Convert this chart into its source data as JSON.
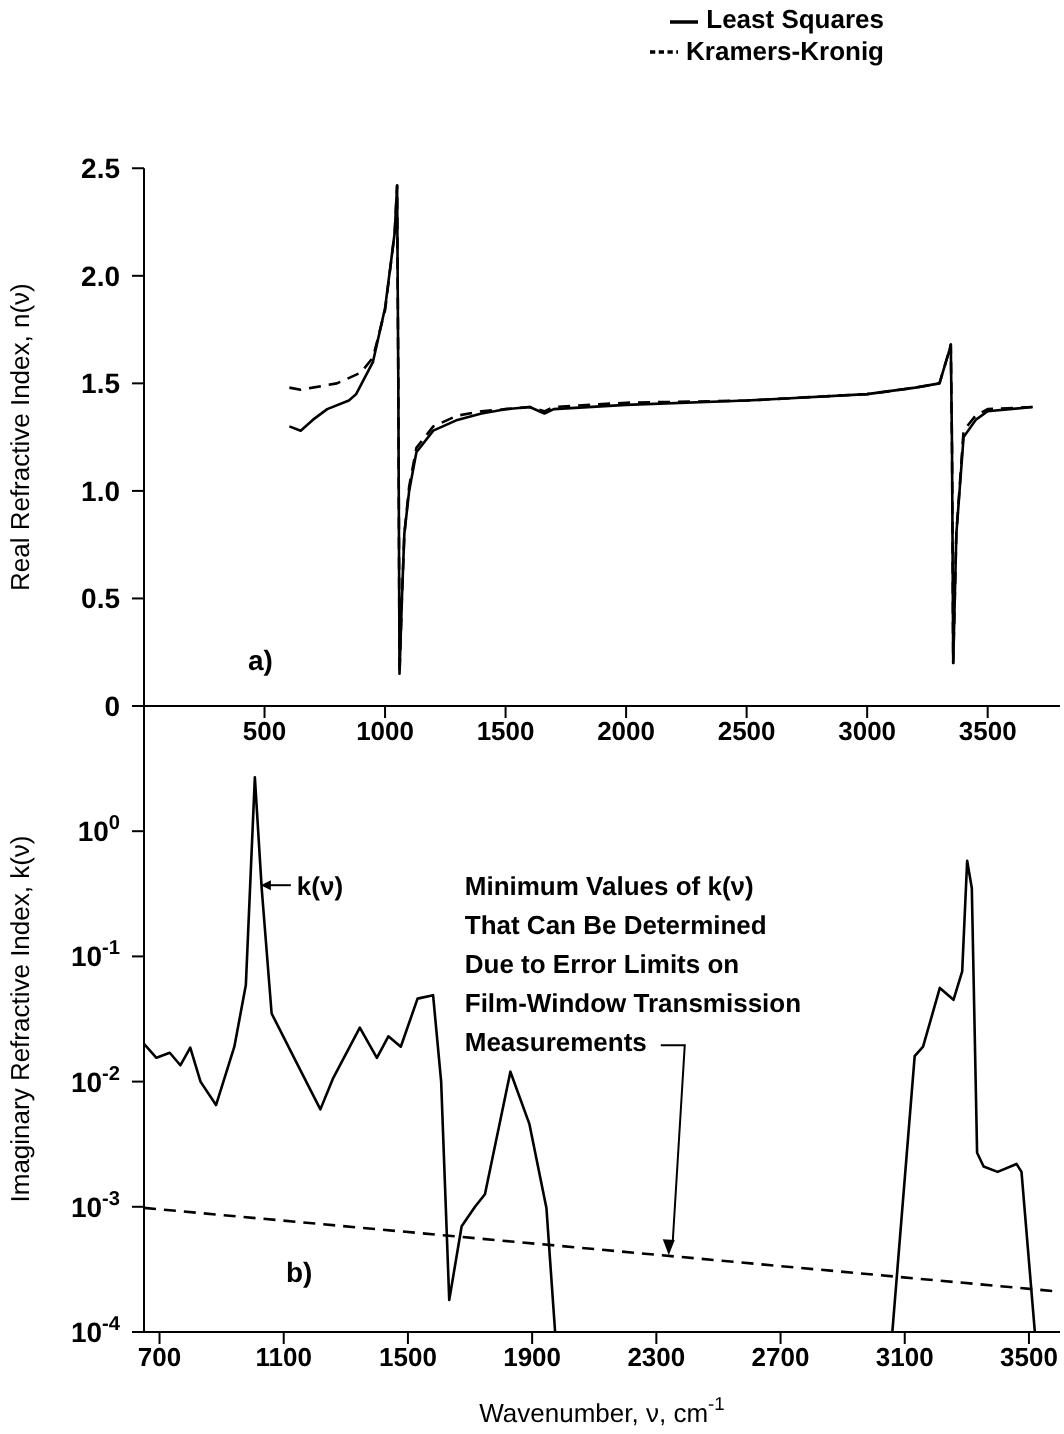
{
  "chart_data": [
    {
      "type": "line",
      "ylabel": "Real Refractive Index, n(ν)",
      "xlim": [
        0,
        3800
      ],
      "xticks": [
        500,
        1000,
        1500,
        2000,
        2500,
        3000,
        3500
      ],
      "ylim": [
        0,
        2.5
      ],
      "yticks": [
        0,
        0.5,
        {
          "value": 1,
          "label": "1.0"
        },
        1.5,
        {
          "value": 2,
          "label": "2.0"
        },
        2.5
      ],
      "legend": "top right",
      "annotations": [
        "a)"
      ],
      "series": [
        {
          "name": "Least Squares",
          "color": "#000000",
          "line_style": "solid",
          "x": [
            603,
            650,
            700,
            760,
            850,
            880,
            950,
            1000,
            1040,
            1050,
            1055,
            1060,
            1070,
            1080,
            1100,
            1130,
            1200,
            1300,
            1400,
            1500,
            1600,
            1661,
            1700,
            2000,
            2500,
            3000,
            3200,
            3300,
            3340,
            3347,
            3352,
            3357,
            3370,
            3400,
            3450,
            3500,
            3686
          ],
          "values": [
            1.3,
            1.28,
            1.33,
            1.38,
            1.42,
            1.45,
            1.6,
            1.85,
            2.2,
            2.42,
            1.5,
            0.15,
            0.5,
            0.8,
            1.0,
            1.18,
            1.28,
            1.33,
            1.36,
            1.38,
            1.39,
            1.36,
            1.38,
            1.4,
            1.42,
            1.45,
            1.48,
            1.5,
            1.65,
            1.68,
            1.2,
            0.2,
            0.8,
            1.25,
            1.33,
            1.37,
            1.39
          ]
        },
        {
          "name": "Kramers-Kronig",
          "color": "#000000",
          "line_style": "dashed",
          "x": [
            603,
            650,
            700,
            800,
            900,
            950,
            1000,
            1040,
            1050,
            1055,
            1060,
            1070,
            1080,
            1100,
            1130,
            1200,
            1300,
            1400,
            1500,
            1600,
            1661,
            1700,
            2000,
            2500,
            3000,
            3200,
            3300,
            3340,
            3347,
            3352,
            3357,
            3370,
            3400,
            3450,
            3500,
            3686
          ],
          "values": [
            1.48,
            1.47,
            1.48,
            1.5,
            1.55,
            1.62,
            1.84,
            2.2,
            2.42,
            1.5,
            0.15,
            0.5,
            0.8,
            1.02,
            1.2,
            1.3,
            1.35,
            1.37,
            1.38,
            1.39,
            1.37,
            1.39,
            1.41,
            1.42,
            1.45,
            1.48,
            1.5,
            1.65,
            1.68,
            1.2,
            0.2,
            0.8,
            1.28,
            1.35,
            1.38,
            1.39
          ]
        }
      ]
    },
    {
      "type": "line",
      "xlabel": "Wavenumber, ν, cm$^{-1}$",
      "ylabel": "Imaginary Refractive Index, k(ν)",
      "log": "y",
      "xlim": [
        650,
        3600
      ],
      "xticks": [
        700,
        1100,
        1500,
        1900,
        2300,
        2700,
        3100,
        3500
      ],
      "ylim": [
        0.0001,
        10
      ],
      "yticks": [
        {
          "value": 0.0001,
          "label": "10$^{-4}$"
        },
        {
          "value": 0.001,
          "label": "10$^{-3}$"
        },
        {
          "value": 0.01,
          "label": "10$^{-2}$"
        },
        {
          "value": 0.1,
          "label": "10$^{-1}$"
        },
        {
          "value": 1,
          "label": "10$^{0}$"
        }
      ],
      "annotations": [
        "b)",
        {
          "text": "Minimum Values of k(ν)\nThat Can Be Determined\nDue to Error Limits on\nFilm-Window Transmission\nMeasurements",
          "x": 2340,
          "y": 0.00041
        }
      ],
      "series": [
        {
          "name": "k(ν)",
          "color": "#000000",
          "line_style": "solid",
          "x": [
            650,
            690,
            733,
            767,
            799,
            832,
            882,
            941,
            978,
            1007,
            1029,
            1061,
            1149,
            1218,
            1258,
            1345,
            1400,
            1437,
            1477,
            1531,
            1581,
            1607,
            1633,
            1673,
            1716,
            1748,
            1830,
            1891,
            1946,
            1974,
            2500,
            3060,
            3132,
            3159,
            3213,
            3257,
            3285,
            3301,
            3316,
            3333,
            3354,
            3399,
            3460,
            3476,
            3519
          ],
          "values": [
            0.02,
            0.0155,
            0.017,
            0.0135,
            0.0187,
            0.01,
            0.0065,
            0.019,
            0.059,
            2.7,
            0.35,
            0.035,
            0.013,
            0.006,
            0.0105,
            0.027,
            0.0155,
            0.023,
            0.019,
            0.046,
            0.049,
            0.01,
            0.00018,
            0.0007,
            0.001,
            0.00126,
            0.012,
            0.0046,
            0.00098,
            0.0001,
            null,
            0.0001,
            0.016,
            0.019,
            0.056,
            0.045,
            0.076,
            0.58,
            0.35,
            0.0027,
            0.0021,
            0.0019,
            0.0022,
            0.0019,
            0.0001
          ]
        },
        {
          "color": "#000000",
          "line_style": "dashed",
          "x": [
            650,
            3600
          ],
          "values": [
            0.00098,
            0.00021
          ]
        }
      ]
    }
  ]
}
